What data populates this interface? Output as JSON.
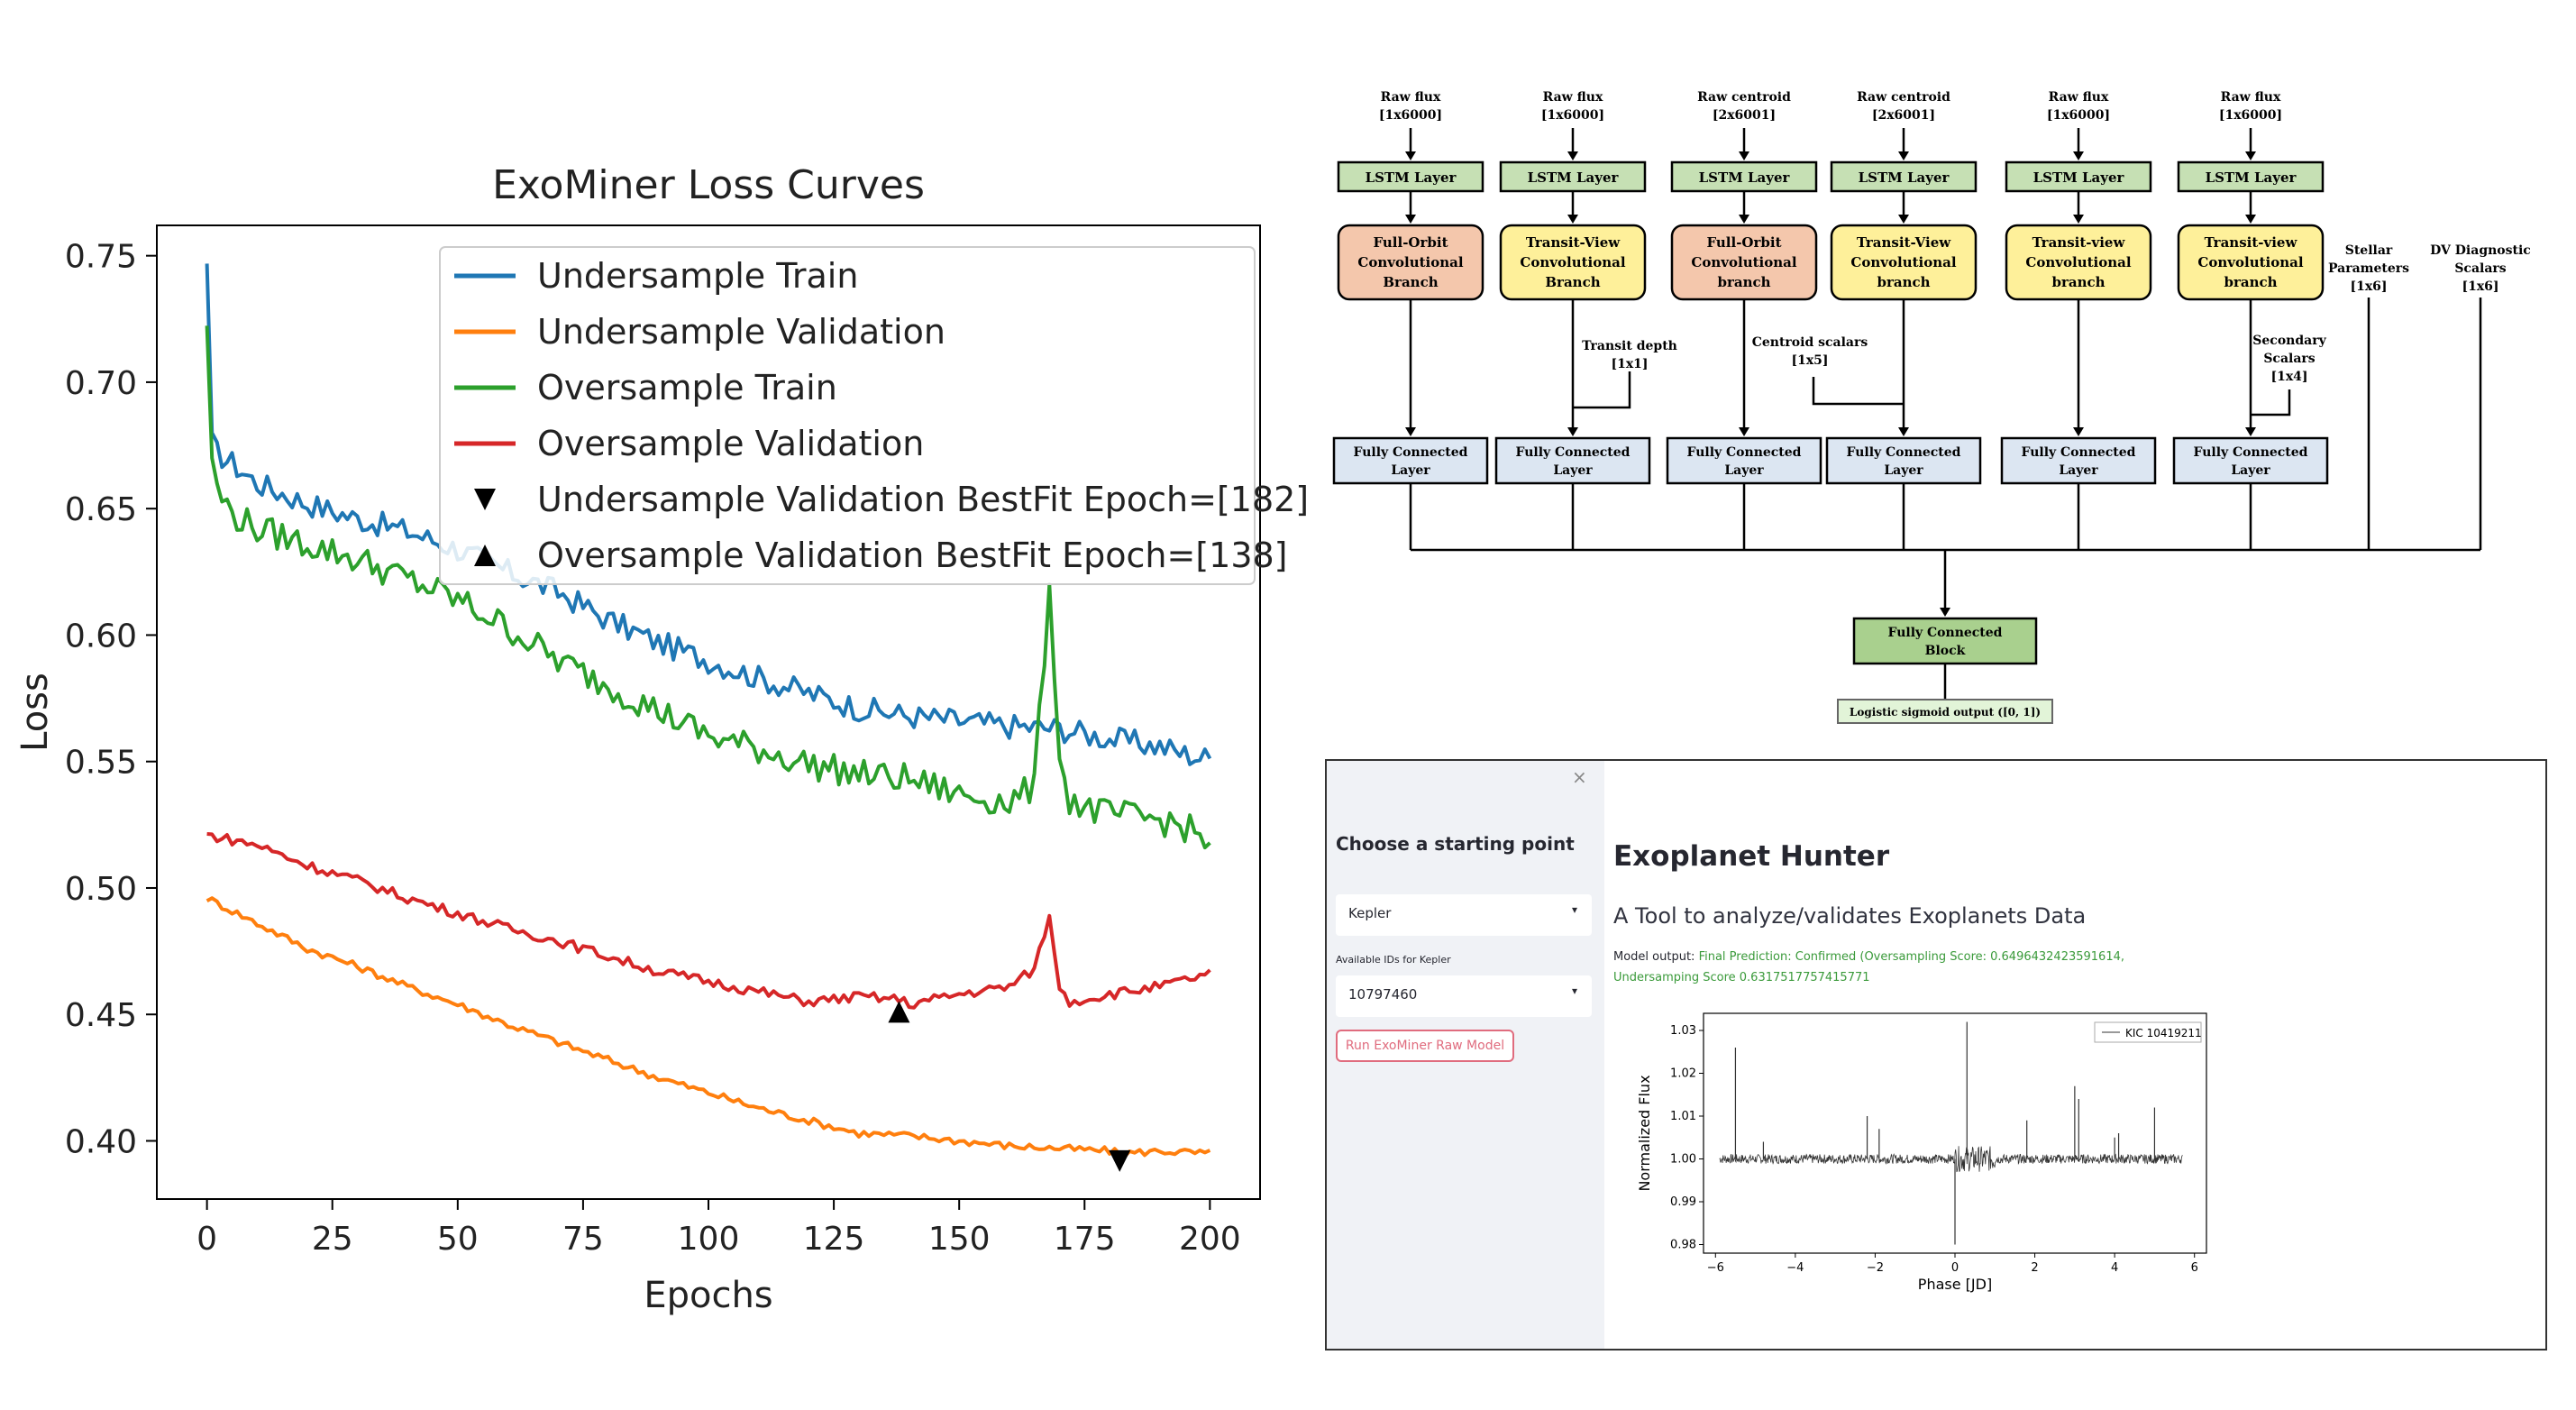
{
  "chart_data": [
    {
      "type": "line",
      "title": "ExoMiner Loss Curves",
      "xlabel": "Epochs",
      "ylabel": "Loss",
      "xlim": [
        -10,
        210
      ],
      "ylim": [
        0.377,
        0.762
      ],
      "xticks": [
        "0",
        "25",
        "50",
        "75",
        "100",
        "125",
        "150",
        "175",
        "200"
      ],
      "yticks": [
        "0.40",
        "0.45",
        "0.50",
        "0.55",
        "0.60",
        "0.65",
        "0.70",
        "0.75"
      ],
      "grid": false,
      "legend_position": "top-right",
      "series": [
        {
          "name": "Undersample Train",
          "color": "#1f77b4",
          "x": [
            0,
            1,
            2,
            5,
            10,
            20,
            30,
            40,
            50,
            60,
            70,
            80,
            90,
            100,
            110,
            120,
            130,
            140,
            150,
            160,
            170,
            180,
            190,
            195,
            200
          ],
          "y": [
            0.743,
            0.68,
            0.672,
            0.668,
            0.66,
            0.652,
            0.646,
            0.641,
            0.634,
            0.625,
            0.617,
            0.606,
            0.597,
            0.59,
            0.583,
            0.577,
            0.571,
            0.568,
            0.566,
            0.564,
            0.563,
            0.559,
            0.556,
            0.553,
            0.551
          ]
        },
        {
          "name": "Undersample Validation",
          "color": "#ff7f0e",
          "x": [
            0,
            10,
            20,
            30,
            40,
            50,
            60,
            70,
            80,
            90,
            100,
            110,
            120,
            130,
            140,
            150,
            160,
            170,
            180,
            182,
            190,
            200
          ],
          "y": [
            0.496,
            0.486,
            0.476,
            0.469,
            0.461,
            0.454,
            0.446,
            0.439,
            0.432,
            0.425,
            0.419,
            0.413,
            0.408,
            0.403,
            0.402,
            0.4,
            0.398,
            0.397,
            0.396,
            0.395,
            0.396,
            0.395
          ]
        },
        {
          "name": "Oversample Train",
          "color": "#2ca02c",
          "x": [
            0,
            1,
            2,
            5,
            10,
            20,
            30,
            40,
            50,
            60,
            70,
            80,
            90,
            100,
            110,
            120,
            130,
            140,
            150,
            160,
            165,
            168,
            170,
            172,
            175,
            180,
            190,
            195,
            200
          ],
          "y": [
            0.724,
            0.67,
            0.657,
            0.648,
            0.642,
            0.636,
            0.63,
            0.622,
            0.614,
            0.603,
            0.59,
            0.58,
            0.57,
            0.56,
            0.555,
            0.549,
            0.545,
            0.543,
            0.537,
            0.534,
            0.54,
            0.62,
            0.551,
            0.535,
            0.532,
            0.529,
            0.527,
            0.524,
            0.518
          ]
        },
        {
          "name": "Oversample Validation",
          "color": "#d62728",
          "x": [
            0,
            10,
            20,
            30,
            40,
            50,
            60,
            70,
            80,
            90,
            100,
            110,
            120,
            130,
            138,
            140,
            150,
            160,
            165,
            168,
            170,
            172,
            175,
            180,
            190,
            200
          ],
          "y": [
            0.521,
            0.517,
            0.509,
            0.503,
            0.496,
            0.49,
            0.484,
            0.479,
            0.473,
            0.467,
            0.463,
            0.459,
            0.455,
            0.457,
            0.456,
            0.454,
            0.458,
            0.461,
            0.468,
            0.489,
            0.46,
            0.455,
            0.456,
            0.458,
            0.461,
            0.466
          ]
        }
      ],
      "markers": [
        {
          "name": "Undersample Validation BestFit Epoch=[182]",
          "symbol": "triangle-down",
          "color": "#000000",
          "x": 182,
          "y": 0.392
        },
        {
          "name": "Oversample Validation BestFit Epoch=[138]",
          "symbol": "triangle-up",
          "color": "#000000",
          "x": 138,
          "y": 0.451
        }
      ]
    },
    {
      "type": "line",
      "title": "",
      "xlabel": "Phase [JD]",
      "ylabel": "Normalized Flux",
      "xlim": [
        -6.3,
        6.3
      ],
      "ylim": [
        0.978,
        1.034
      ],
      "xticks": [
        "−6",
        "−4",
        "−2",
        "0",
        "2",
        "4",
        "6"
      ],
      "yticks": [
        "0.98",
        "0.99",
        "1.00",
        "1.01",
        "1.02",
        "1.03"
      ],
      "legend_position": "top-right",
      "series": [
        {
          "name": "KIC 10419211",
          "color": "#333333",
          "x_range": [
            -5.9,
            5.7
          ],
          "baseline": 1.0,
          "spikes": [
            [
              -5.5,
              1.026
            ],
            [
              -4.8,
              1.004
            ],
            [
              -2.2,
              1.01
            ],
            [
              -1.9,
              1.007
            ],
            [
              0.0,
              0.98
            ],
            [
              0.3,
              1.032
            ],
            [
              1.8,
              1.009
            ],
            [
              3.0,
              1.017
            ],
            [
              3.1,
              1.014
            ],
            [
              4.0,
              1.005
            ],
            [
              4.1,
              1.006
            ],
            [
              5.0,
              1.012
            ]
          ]
        }
      ]
    }
  ],
  "architecture": {
    "inputs": [
      {
        "label": "Raw flux",
        "dims": "[1x6000]"
      },
      {
        "label": "Raw flux",
        "dims": "[1x6000]"
      },
      {
        "label": "Raw centroid",
        "dims": "[2x6001]"
      },
      {
        "label": "Raw centroid",
        "dims": "[2x6001]"
      },
      {
        "label": "Raw flux",
        "dims": "[1x6000]"
      },
      {
        "label": "Raw flux",
        "dims": "[1x6000]"
      }
    ],
    "lstm_label": "LSTM Layer",
    "branches": [
      {
        "lines": [
          "Full-Orbit",
          "Convolutional",
          "Branch"
        ],
        "color": "#f4c7ac"
      },
      {
        "lines": [
          "Transit-View",
          "Convolutional",
          "Branch"
        ],
        "color": "#fef09a"
      },
      {
        "lines": [
          "Full-Orbit",
          "Convolutional",
          "branch"
        ],
        "color": "#f4c7ac"
      },
      {
        "lines": [
          "Transit-View",
          "Convolutional",
          "branch"
        ],
        "color": "#fef09a"
      },
      {
        "lines": [
          "Transit-view",
          "Convolutional",
          "branch"
        ],
        "color": "#fef09a"
      },
      {
        "lines": [
          "Transit-view",
          "Convolutional",
          "branch"
        ],
        "color": "#fef09a"
      }
    ],
    "side_inputs": [
      {
        "lines": [
          "Transit depth",
          "[1x1]"
        ]
      },
      {
        "lines": [
          "Centroid scalars",
          "[1x5]"
        ]
      },
      {
        "lines": [
          "Secondary",
          "Scalars",
          "[1x4]"
        ]
      },
      {
        "lines": [
          "Stellar",
          "Parameters",
          "[1x6]"
        ]
      },
      {
        "lines": [
          "DV Diagnostic",
          "Scalars",
          "[1x6]"
        ]
      }
    ],
    "fc_lines": [
      "Fully Connected",
      "Layer"
    ],
    "block_lines": [
      "Fully Connected",
      "Block"
    ],
    "output_label": "Logistic sigmoid output ([0, 1])",
    "colors": {
      "lstm": "#c6e0b4",
      "fc": "#dce6f2",
      "block": "#a9d08e",
      "output": "#e2f4d8"
    }
  },
  "app": {
    "close_glyph": "×",
    "sidebar_heading": "Choose a starting point",
    "dataset_select": "Kepler",
    "ids_label": "Available IDs for Kepler",
    "id_select": "10797460",
    "caret": "▾",
    "run_button": "Run ExoMiner Raw Model",
    "title": "Exoplanet Hunter",
    "subtitle": "A Tool to analyze/validates Exoplanets Data",
    "output_label": "Model output: ",
    "output_value": "Final Prediction: Confirmed (Oversampling Score: 0.6496432423591614, Undersamping Score 0.6317517757415771"
  },
  "colors": {
    "accent_green": "#3a9a3a",
    "button_red": "#e06c7e",
    "sidebar_bg": "#f0f2f6"
  }
}
